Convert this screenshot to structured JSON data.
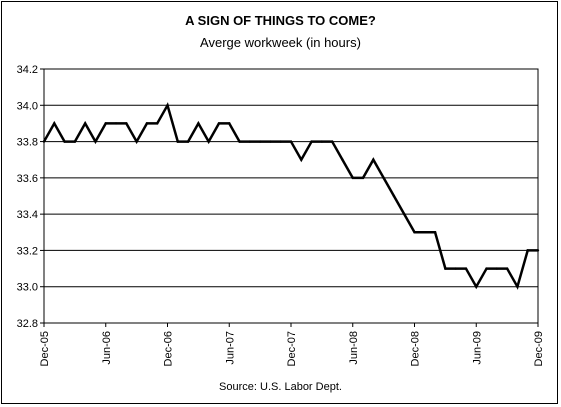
{
  "chart_data": {
    "type": "line",
    "title": "A SIGN OF THINGS TO COME?",
    "subtitle": "Averge workweek (in hours)",
    "source": "Source: U.S. Labor Dept.",
    "xlabel": "",
    "ylabel": "",
    "ylim": [
      32.8,
      34.2
    ],
    "yticks": [
      "32.8",
      "33.0",
      "33.2",
      "33.4",
      "33.6",
      "33.8",
      "34.0",
      "34.2"
    ],
    "ytick_values": [
      32.8,
      33.0,
      33.2,
      33.4,
      33.6,
      33.8,
      34.0,
      34.2
    ],
    "x_tick_labels": [
      "Dec-05",
      "Jun-06",
      "Dec-06",
      "Jun-07",
      "Dec-07",
      "Jun-08",
      "Dec-08",
      "Jun-09",
      "Dec-09"
    ],
    "x_tick_month_index": [
      0,
      6,
      12,
      18,
      24,
      30,
      36,
      42,
      48
    ],
    "grid": "horizontal",
    "legend": "none",
    "line_color": "#000000",
    "series": [
      {
        "values": [
          33.8,
          33.9,
          33.8,
          33.8,
          33.9,
          33.8,
          33.9,
          33.9,
          33.9,
          33.8,
          33.9,
          33.9,
          34.0,
          33.8,
          33.8,
          33.9,
          33.8,
          33.9,
          33.9,
          33.8,
          33.8,
          33.8,
          33.8,
          33.8,
          33.8,
          33.7,
          33.8,
          33.8,
          33.8,
          33.7,
          33.6,
          33.6,
          33.7,
          33.6,
          33.5,
          33.4,
          33.3,
          33.3,
          33.3,
          33.1,
          33.1,
          33.1,
          33.0,
          33.1,
          33.1,
          33.1,
          33.0,
          33.2,
          33.2
        ]
      }
    ]
  }
}
